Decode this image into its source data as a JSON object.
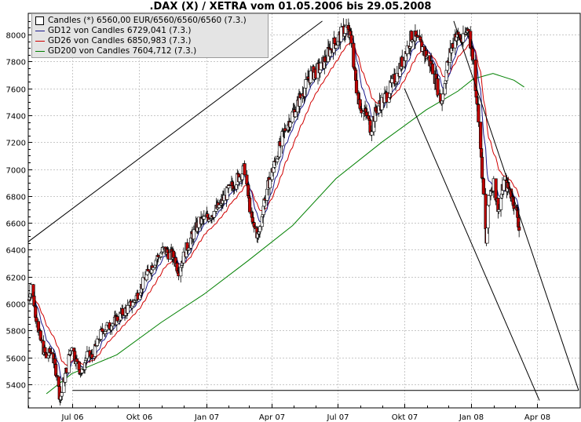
{
  "chart_data": {
    "type": "candlestick",
    "title": ".DAX (X) / XETRA vom 01.05.2006 bis 29.05.2008",
    "y_ticks": [
      5400,
      5600,
      5800,
      6000,
      6200,
      6400,
      6600,
      6800,
      7000,
      7200,
      7400,
      7600,
      7800,
      8000
    ],
    "x_ticks": [
      "Jul 06",
      "Okt 06",
      "Jan 07",
      "Apr 07",
      "Jul 07",
      "Okt 07",
      "Jan 08",
      "Apr 08"
    ],
    "ylim": [
      5260,
      8100
    ],
    "grid": true,
    "legend_placement": "top-left",
    "legend": [
      {
        "label": "Candles (*) 6560,00 EUR/6560/6560/6560 (7.3.)",
        "symbol": "box",
        "color": "#000000"
      },
      {
        "label": "GD12 von Candles 6729,041 (7.3.)",
        "symbol": "line",
        "color": "#1a1a8c"
      },
      {
        "label": "GD26 von Candles 6850,983 (7.3.)",
        "symbol": "line",
        "color": "#d00000"
      },
      {
        "label": "GD200 von Candles 7604,712 (7.3.)",
        "symbol": "line",
        "color": "#008000"
      }
    ],
    "series": [
      {
        "name": "Candles",
        "type": "candlestick",
        "up_color": "#ffffff",
        "down_color": "#c00000",
        "trend_points": [
          [
            "2006-05-02",
            6030
          ],
          [
            "2006-05-05",
            6150
          ],
          [
            "2006-05-12",
            5900
          ],
          [
            "2006-05-19",
            5700
          ],
          [
            "2006-05-26",
            5600
          ],
          [
            "2006-06-02",
            5650
          ],
          [
            "2006-06-09",
            5480
          ],
          [
            "2006-06-14",
            5290
          ],
          [
            "2006-06-23",
            5520
          ],
          [
            "2006-06-30",
            5700
          ],
          [
            "2006-07-07",
            5550
          ],
          [
            "2006-07-14",
            5480
          ],
          [
            "2006-07-21",
            5620
          ],
          [
            "2006-07-28",
            5600
          ],
          [
            "2006-08-04",
            5700
          ],
          [
            "2006-08-11",
            5800
          ],
          [
            "2006-08-25",
            5850
          ],
          [
            "2006-09-08",
            5930
          ],
          [
            "2006-09-22",
            6000
          ],
          [
            "2006-10-06",
            6150
          ],
          [
            "2006-10-20",
            6300
          ],
          [
            "2006-11-03",
            6400
          ],
          [
            "2006-11-17",
            6350
          ],
          [
            "2006-11-24",
            6250
          ],
          [
            "2006-12-08",
            6450
          ],
          [
            "2006-12-22",
            6600
          ],
          [
            "2007-01-05",
            6650
          ],
          [
            "2007-01-19",
            6720
          ],
          [
            "2007-02-02",
            6850
          ],
          [
            "2007-02-23",
            7000
          ],
          [
            "2007-03-05",
            6600
          ],
          [
            "2007-03-14",
            6500
          ],
          [
            "2007-03-23",
            6800
          ],
          [
            "2007-04-06",
            7050
          ],
          [
            "2007-04-20",
            7300
          ],
          [
            "2007-05-04",
            7450
          ],
          [
            "2007-05-25",
            7700
          ],
          [
            "2007-06-08",
            7750
          ],
          [
            "2007-06-22",
            7900
          ],
          [
            "2007-07-06",
            8000
          ],
          [
            "2007-07-13",
            8050
          ],
          [
            "2007-07-20",
            7950
          ],
          [
            "2007-07-27",
            7600
          ],
          [
            "2007-08-03",
            7450
          ],
          [
            "2007-08-10",
            7400
          ],
          [
            "2007-08-16",
            7300
          ],
          [
            "2007-08-24",
            7450
          ],
          [
            "2007-09-07",
            7550
          ],
          [
            "2007-09-21",
            7700
          ],
          [
            "2007-10-05",
            7900
          ],
          [
            "2007-10-12",
            8000
          ],
          [
            "2007-10-26",
            7900
          ],
          [
            "2007-11-09",
            7750
          ],
          [
            "2007-11-21",
            7500
          ],
          [
            "2007-11-30",
            7800
          ],
          [
            "2007-12-10",
            8000
          ],
          [
            "2007-12-21",
            7950
          ],
          [
            "2007-12-28",
            8050
          ],
          [
            "2008-01-04",
            7800
          ],
          [
            "2008-01-11",
            7400
          ],
          [
            "2008-01-18",
            6800
          ],
          [
            "2008-01-22",
            6450
          ],
          [
            "2008-01-25",
            6800
          ],
          [
            "2008-02-01",
            6900
          ],
          [
            "2008-02-08",
            6700
          ],
          [
            "2008-02-15",
            6900
          ],
          [
            "2008-02-22",
            6850
          ],
          [
            "2008-02-29",
            6750
          ],
          [
            "2008-03-05",
            6650
          ],
          [
            "2008-03-07",
            6560
          ]
        ]
      },
      {
        "name": "GD12",
        "type": "line",
        "color": "#1a1a8c"
      },
      {
        "name": "GD26",
        "type": "line",
        "color": "#d00000"
      },
      {
        "name": "GD200",
        "type": "line",
        "color": "#008000",
        "values": [
          [
            "2006-05-26",
            5330
          ],
          [
            "2006-06-30",
            5480
          ],
          [
            "2006-08-31",
            5620
          ],
          [
            "2006-10-31",
            5860
          ],
          [
            "2006-12-29",
            6070
          ],
          [
            "2007-02-28",
            6320
          ],
          [
            "2007-04-30",
            6580
          ],
          [
            "2007-06-29",
            6930
          ],
          [
            "2007-08-31",
            7200
          ],
          [
            "2007-10-31",
            7440
          ],
          [
            "2007-12-14",
            7580
          ],
          [
            "2008-01-04",
            7670
          ],
          [
            "2008-01-31",
            7710
          ],
          [
            "2008-02-29",
            7660
          ],
          [
            "2008-03-14",
            7610
          ]
        ]
      }
    ],
    "trendlines": [
      {
        "from": [
          "2006-05-01",
          6460
        ],
        "to": [
          "2007-06-10",
          8100
        ]
      },
      {
        "from": [
          "2006-07-01",
          5355
        ],
        "to": [
          "2008-05-28",
          5355
        ]
      },
      {
        "from": [
          "2007-12-08",
          8100
        ],
        "to": [
          "2008-05-28",
          5355
        ]
      },
      {
        "from": [
          "2007-10-01",
          7600
        ],
        "to": [
          "2008-04-04",
          5280
        ]
      }
    ]
  }
}
